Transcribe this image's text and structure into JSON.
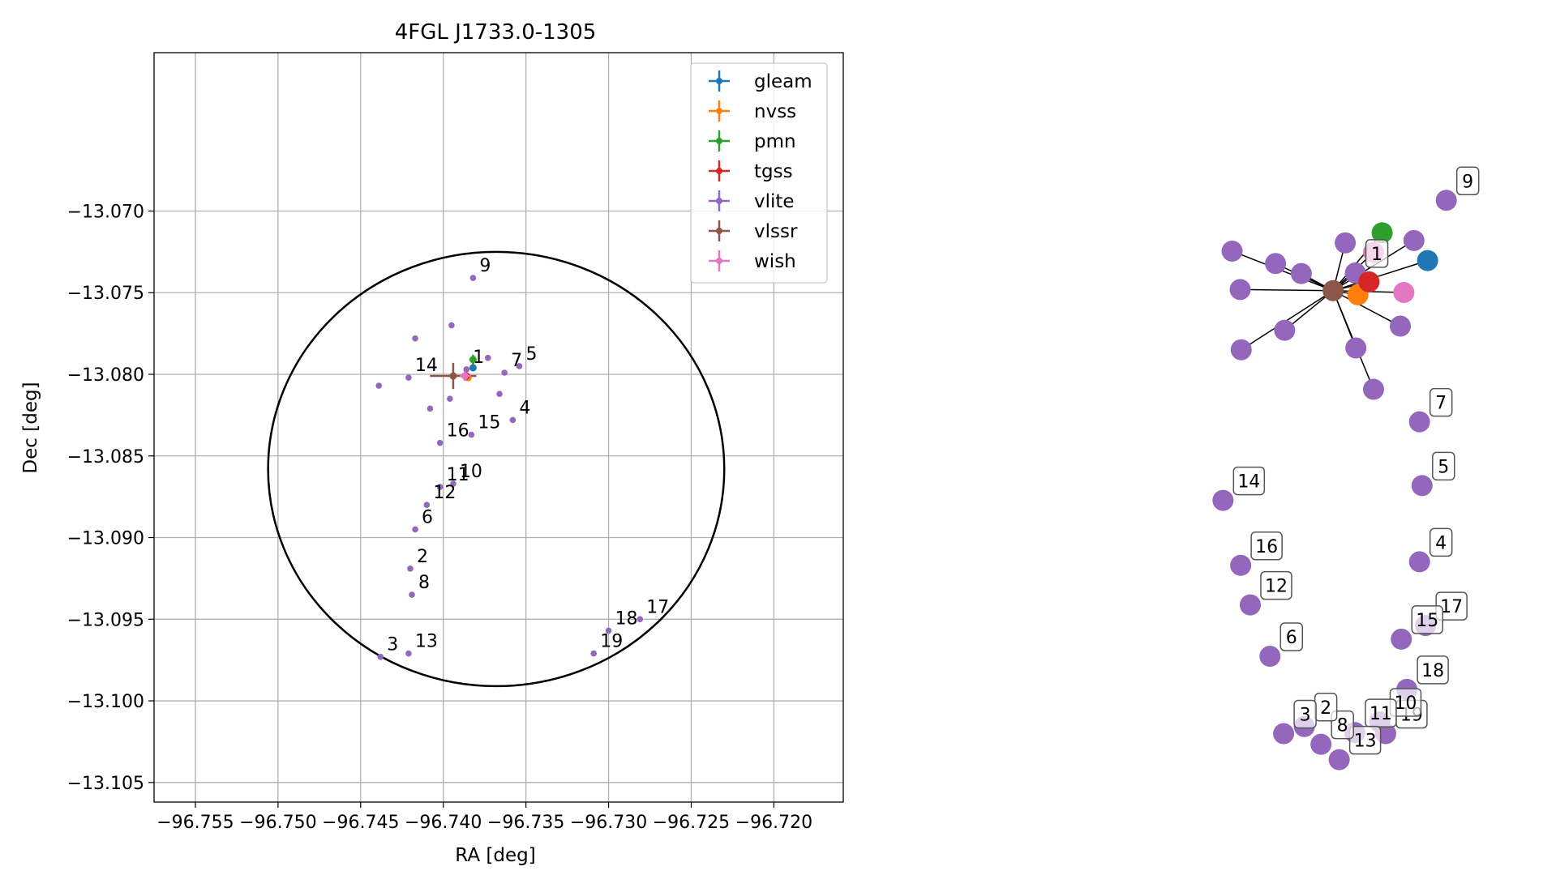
{
  "colors": {
    "gleam": "#1f77b4",
    "nvss": "#ff7f0e",
    "pmn": "#2ca02c",
    "tgss": "#d62728",
    "vlite": "#9467bd",
    "vlssr": "#8c564b",
    "wish": "#e377c2",
    "grid": "#b0b0b0",
    "axes": "#000000"
  },
  "chart_data": [
    {
      "type": "scatter",
      "title": "4FGL J1733.0-1305",
      "xlabel": "RA [deg]",
      "ylabel": "Dec [deg]",
      "xlim": [
        -96.7575,
        -96.7158
      ],
      "ylim": [
        -13.1062,
        -13.0603
      ],
      "x_ticks": [
        -96.755,
        -96.75,
        -96.745,
        -96.74,
        -96.735,
        -96.73,
        -96.725,
        -96.72
      ],
      "x_tick_labels": [
        "−96.755",
        "−96.750",
        "−96.745",
        "−96.740",
        "−96.735",
        "−96.730",
        "−96.725",
        "−96.720"
      ],
      "y_ticks": [
        -13.07,
        -13.075,
        -13.08,
        -13.085,
        -13.09,
        -13.095,
        -13.1,
        -13.105
      ],
      "y_tick_labels": [
        "−13.070",
        "−13.075",
        "−13.080",
        "−13.085",
        "−13.090",
        "−13.095",
        "−13.100",
        "−13.105"
      ],
      "grid": true,
      "legend_position": "top-right",
      "ellipse": {
        "center_ra": -96.7368,
        "center_dec": -13.0858,
        "half_width_ra": 0.0138,
        "half_height_dec": 0.0133,
        "color": "#000000"
      },
      "series": [
        {
          "name": "gleam",
          "points": [
            {
              "ra": -96.7382,
              "dec": -13.0796,
              "err_ra": 0.0002,
              "err_dec": 0.0002
            }
          ]
        },
        {
          "name": "nvss",
          "points": [
            {
              "ra": -96.7385,
              "dec": -13.0802,
              "err_ra": 0.0002,
              "err_dec": 0.0002
            }
          ]
        },
        {
          "name": "pmn",
          "points": [
            {
              "ra": -96.7382,
              "dec": -13.0791,
              "err_ra": 0.0001,
              "err_dec": 0.0003
            }
          ]
        },
        {
          "name": "tgss",
          "points": [
            {
              "ra": -96.7386,
              "dec": -13.0801,
              "err_ra": 0.0002,
              "err_dec": 0.0002
            }
          ]
        },
        {
          "name": "vlite",
          "points": [
            {
              "ra": -96.7386,
              "dec": -13.0797,
              "label": "1"
            },
            {
              "ra": -96.742,
              "dec": -13.0919,
              "label": "2"
            },
            {
              "ra": -96.7438,
              "dec": -13.0973,
              "label": "3"
            },
            {
              "ra": -96.7358,
              "dec": -13.0828,
              "label": "4"
            },
            {
              "ra": -96.7354,
              "dec": -13.0795,
              "label": "5"
            },
            {
              "ra": -96.7417,
              "dec": -13.0895,
              "label": "6"
            },
            {
              "ra": -96.7363,
              "dec": -13.0799,
              "label": "7"
            },
            {
              "ra": -96.7419,
              "dec": -13.0935,
              "label": "8"
            },
            {
              "ra": -96.7382,
              "dec": -13.0741,
              "label": "9"
            },
            {
              "ra": -96.7394,
              "dec": -13.0867,
              "label": "10"
            },
            {
              "ra": -96.7402,
              "dec": -13.0869,
              "label": "11"
            },
            {
              "ra": -96.741,
              "dec": -13.088,
              "label": "12"
            },
            {
              "ra": -96.7421,
              "dec": -13.0971,
              "label": "13"
            },
            {
              "ra": -96.7421,
              "dec": -13.0802,
              "label": "14"
            },
            {
              "ra": -96.7383,
              "dec": -13.0837,
              "label": "15"
            },
            {
              "ra": -96.7402,
              "dec": -13.0842,
              "label": "16"
            },
            {
              "ra": -96.7281,
              "dec": -13.095,
              "label": "17"
            },
            {
              "ra": -96.73,
              "dec": -13.0957,
              "label": "18"
            },
            {
              "ra": -96.7309,
              "dec": -13.0971,
              "label": "19"
            },
            {
              "ra": -96.7417,
              "dec": -13.0778
            },
            {
              "ra": -96.7395,
              "dec": -13.077
            },
            {
              "ra": -96.7439,
              "dec": -13.0807
            },
            {
              "ra": -96.7408,
              "dec": -13.0821
            },
            {
              "ra": -96.7396,
              "dec": -13.0815
            },
            {
              "ra": -96.7373,
              "dec": -13.079
            },
            {
              "ra": -96.7366,
              "dec": -13.0812
            }
          ]
        },
        {
          "name": "vlssr",
          "points": [
            {
              "ra": -96.7394,
              "dec": -13.0801,
              "err_ra": 0.0014,
              "err_dec": 0.0008
            }
          ]
        },
        {
          "name": "wish",
          "points": [
            {
              "ra": -96.7387,
              "dec": -13.0801,
              "err_ra": 0.0003,
              "err_dec": 0.0003
            }
          ]
        }
      ]
    },
    {
      "type": "network",
      "nodes": [
        {
          "id": "gleam",
          "x": 0.932,
          "y": 0.851,
          "series": "gleam"
        },
        {
          "id": "nvss",
          "x": 0.794,
          "y": 0.793,
          "series": "nvss"
        },
        {
          "id": "pmn",
          "x": 0.842,
          "y": 0.898,
          "series": "pmn"
        },
        {
          "id": "tgss",
          "x": 0.816,
          "y": 0.815,
          "series": "tgss"
        },
        {
          "id": "vlssr",
          "x": 0.745,
          "y": 0.8,
          "series": "vlssr"
        },
        {
          "id": "wish-a",
          "x": 0.825,
          "y": 0.865,
          "series": "wish"
        },
        {
          "id": "wish-b",
          "x": 0.885,
          "y": 0.797,
          "series": "wish"
        },
        {
          "id": "1",
          "x": 0.789,
          "y": 0.83,
          "series": "vlite",
          "label": "1"
        },
        {
          "id": "c1",
          "x": 0.631,
          "y": 0.846,
          "series": "vlite"
        },
        {
          "id": "c2",
          "x": 0.561,
          "y": 0.802,
          "series": "vlite"
        },
        {
          "id": "c3",
          "x": 0.545,
          "y": 0.867,
          "series": "vlite"
        },
        {
          "id": "c4",
          "x": 0.563,
          "y": 0.7,
          "series": "vlite"
        },
        {
          "id": "c5",
          "x": 0.649,
          "y": 0.733,
          "series": "vlite"
        },
        {
          "id": "c6",
          "x": 0.682,
          "y": 0.829,
          "series": "vlite"
        },
        {
          "id": "c7",
          "x": 0.769,
          "y": 0.881,
          "series": "vlite"
        },
        {
          "id": "c8",
          "x": 0.79,
          "y": 0.703,
          "series": "vlite"
        },
        {
          "id": "c9",
          "x": 0.878,
          "y": 0.74,
          "series": "vlite"
        },
        {
          "id": "c10",
          "x": 0.905,
          "y": 0.885,
          "series": "vlite"
        },
        {
          "id": "c11",
          "x": 0.825,
          "y": 0.633,
          "series": "vlite"
        },
        {
          "id": "9",
          "x": 0.969,
          "y": 0.953,
          "series": "vlite",
          "label": "9"
        },
        {
          "id": "7",
          "x": 0.916,
          "y": 0.578,
          "series": "vlite",
          "label": "7"
        },
        {
          "id": "5",
          "x": 0.921,
          "y": 0.47,
          "series": "vlite",
          "label": "5"
        },
        {
          "id": "4",
          "x": 0.916,
          "y": 0.341,
          "series": "vlite",
          "label": "4"
        },
        {
          "id": "17",
          "x": 0.928,
          "y": 0.233,
          "series": "vlite",
          "label": "17"
        },
        {
          "id": "15",
          "x": 0.88,
          "y": 0.21,
          "series": "vlite",
          "label": "15"
        },
        {
          "id": "18",
          "x": 0.891,
          "y": 0.125,
          "series": "vlite",
          "label": "18"
        },
        {
          "id": "19",
          "x": 0.849,
          "y": 0.05,
          "series": "vlite",
          "label": "19"
        },
        {
          "id": "10",
          "x": 0.837,
          "y": 0.07,
          "series": "vlite",
          "label": "10"
        },
        {
          "id": "11",
          "x": 0.788,
          "y": 0.052,
          "series": "vlite",
          "label": "11"
        },
        {
          "id": "13",
          "x": 0.757,
          "y": 0.006,
          "series": "vlite",
          "label": "13"
        },
        {
          "id": "8",
          "x": 0.721,
          "y": 0.032,
          "series": "vlite",
          "label": "8"
        },
        {
          "id": "2",
          "x": 0.688,
          "y": 0.062,
          "series": "vlite",
          "label": "2"
        },
        {
          "id": "3",
          "x": 0.647,
          "y": 0.05,
          "series": "vlite",
          "label": "3"
        },
        {
          "id": "6",
          "x": 0.62,
          "y": 0.181,
          "series": "vlite",
          "label": "6"
        },
        {
          "id": "12",
          "x": 0.581,
          "y": 0.268,
          "series": "vlite",
          "label": "12"
        },
        {
          "id": "16",
          "x": 0.562,
          "y": 0.335,
          "series": "vlite",
          "label": "16"
        },
        {
          "id": "14",
          "x": 0.527,
          "y": 0.445,
          "series": "vlite",
          "label": "14"
        }
      ],
      "edges": [
        [
          "vlssr",
          "gleam"
        ],
        [
          "vlssr",
          "nvss"
        ],
        [
          "vlssr",
          "pmn"
        ],
        [
          "vlssr",
          "tgss"
        ],
        [
          "vlssr",
          "wish-a"
        ],
        [
          "vlssr",
          "wish-b"
        ],
        [
          "vlssr",
          "1"
        ],
        [
          "vlssr",
          "c1"
        ],
        [
          "vlssr",
          "c2"
        ],
        [
          "vlssr",
          "c3"
        ],
        [
          "vlssr",
          "c4"
        ],
        [
          "vlssr",
          "c5"
        ],
        [
          "vlssr",
          "c6"
        ],
        [
          "vlssr",
          "c7"
        ],
        [
          "vlssr",
          "c8"
        ],
        [
          "vlssr",
          "c9"
        ],
        [
          "vlssr",
          "c10"
        ],
        [
          "vlssr",
          "c11"
        ]
      ]
    }
  ]
}
